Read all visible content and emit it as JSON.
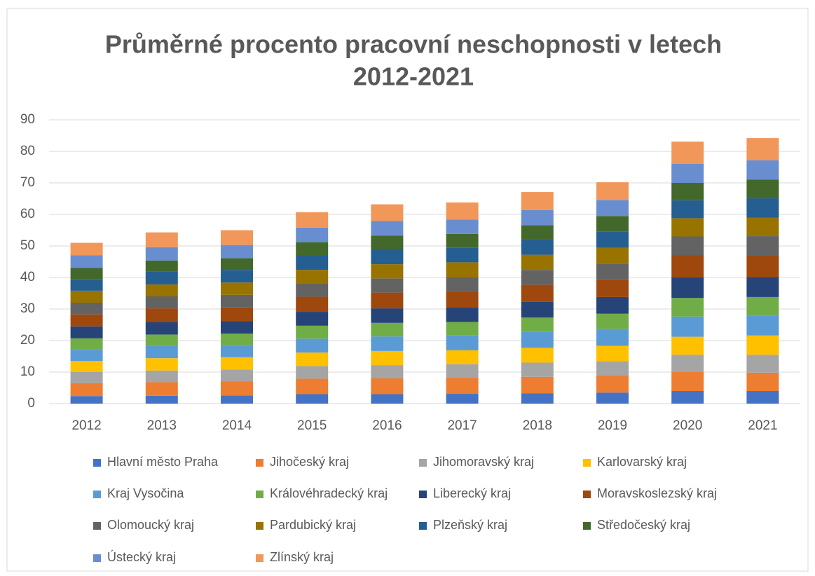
{
  "chart_data": {
    "type": "stacked_bar",
    "title": [
      "Průměrné procento pracovní neschopnosti v letech",
      "2012-2021"
    ],
    "categories": [
      "2012",
      "2013",
      "2014",
      "2015",
      "2016",
      "2017",
      "2018",
      "2019",
      "2020",
      "2021"
    ],
    "ylim": [
      0,
      90
    ],
    "yticks": [
      0,
      10,
      20,
      30,
      40,
      50,
      60,
      70,
      80,
      90
    ],
    "grid": true,
    "legend": "bottom",
    "series": [
      {
        "name": "Hlavní město Praha",
        "color": "#4472c4",
        "values": [
          2.4,
          2.5,
          2.6,
          3,
          3,
          3.1,
          3.3,
          3.5,
          4,
          4
        ]
      },
      {
        "name": "Jihočeský kraj",
        "color": "#ed7d31",
        "values": [
          4.1,
          4.3,
          4.4,
          4.9,
          5,
          5.1,
          5.2,
          5.4,
          6,
          5.8
        ]
      },
      {
        "name": "Jihomoravský kraj",
        "color": "#a5a5a5",
        "values": [
          3.5,
          3.7,
          3.8,
          4,
          4.2,
          4.3,
          4.5,
          4.6,
          5.5,
          5.7
        ]
      },
      {
        "name": "Karlovarský kraj",
        "color": "#ffc000",
        "values": [
          3.5,
          3.9,
          3.9,
          4.3,
          4.5,
          4.4,
          4.7,
          4.8,
          5.7,
          6.1
        ]
      },
      {
        "name": "Kraj Vysočina",
        "color": "#5b9bd5",
        "values": [
          3.7,
          3.9,
          3.9,
          4.4,
          4.6,
          4.7,
          5,
          5.4,
          6.4,
          6.2
        ]
      },
      {
        "name": "Královéhradecký kraj",
        "color": "#70ad47",
        "values": [
          3.5,
          3.6,
          3.6,
          4.1,
          4.3,
          4.3,
          4.6,
          4.8,
          5.9,
          6
        ]
      },
      {
        "name": "Liberecký kraj",
        "color": "#264478",
        "values": [
          3.8,
          4,
          4,
          4.4,
          4.6,
          4.7,
          5,
          5.3,
          6.5,
          6.3
        ]
      },
      {
        "name": "Moravskoslezský kraj",
        "color": "#9e480e",
        "values": [
          3.8,
          4.3,
          4.4,
          4.8,
          5,
          5.1,
          5.4,
          5.7,
          7,
          7
        ]
      },
      {
        "name": "Olomoucký kraj",
        "color": "#636363",
        "values": [
          3.7,
          3.8,
          3.9,
          4.2,
          4.5,
          4.4,
          4.7,
          4.9,
          6,
          6
        ]
      },
      {
        "name": "Pardubický kraj",
        "color": "#997300",
        "values": [
          3.8,
          3.8,
          3.9,
          4.3,
          4.5,
          4.7,
          4.8,
          5,
          5.8,
          5.9
        ]
      },
      {
        "name": "Plzeňský kraj",
        "color": "#255e91",
        "values": [
          3.7,
          4,
          4,
          4.6,
          4.8,
          4.6,
          4.9,
          5.2,
          5.7,
          6.1
        ]
      },
      {
        "name": "Středočeský kraj",
        "color": "#43682b",
        "values": [
          3.5,
          3.6,
          3.7,
          4.2,
          4.3,
          4.4,
          4.5,
          4.9,
          5.5,
          5.9
        ]
      },
      {
        "name": "Ústecký kraj",
        "color": "#698ed0",
        "values": [
          4,
          4.2,
          4.2,
          4.6,
          4.6,
          4.6,
          4.8,
          5.1,
          6,
          6.2
        ]
      },
      {
        "name": "Zlínský kraj",
        "color": "#f1975a",
        "values": [
          4,
          4.7,
          4.7,
          4.9,
          5.3,
          5.4,
          5.7,
          5.6,
          7.1,
          7
        ]
      }
    ]
  }
}
